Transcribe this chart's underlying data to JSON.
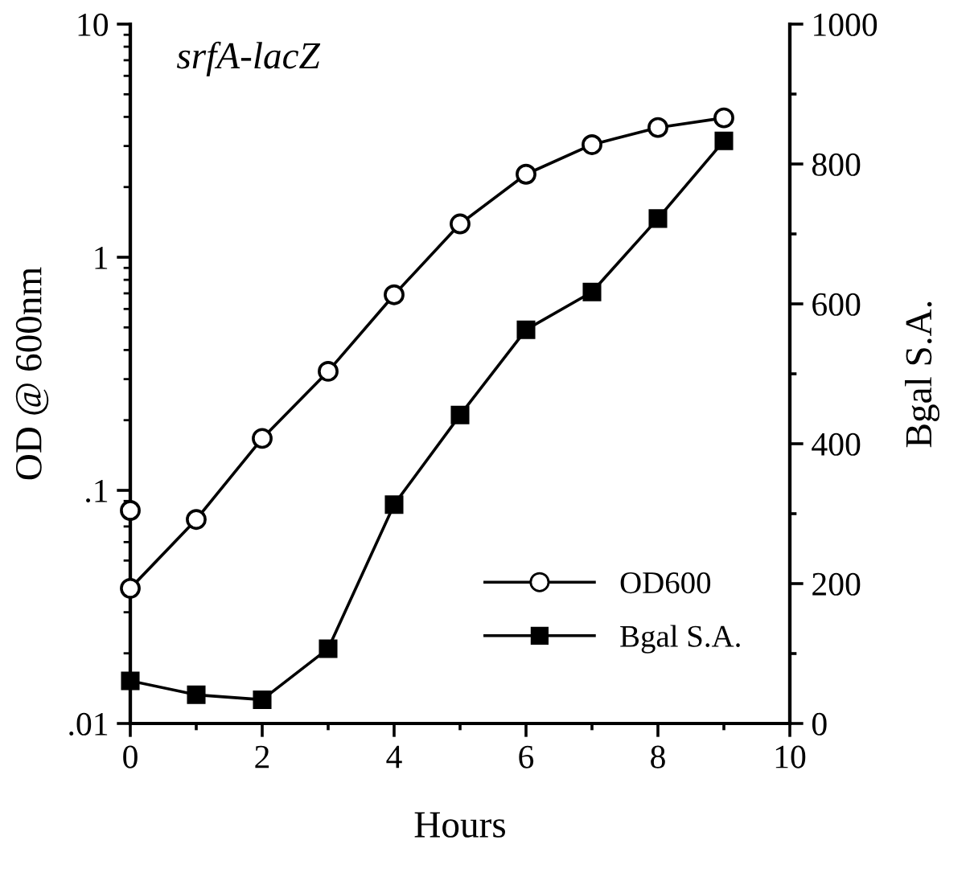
{
  "chart_data": {
    "type": "line",
    "title": "srfA-lacZ",
    "xlabel": "Hours",
    "ylabel": "OD @ 600nm",
    "y2label": "Bgal S.A.",
    "series": [
      {
        "name": "OD600",
        "color": "#000000",
        "marker": "circle",
        "x": [
          0,
          1,
          2,
          3,
          4,
          5,
          6,
          7,
          8,
          9
        ],
        "values": [
          0.038,
          0.075,
          0.167,
          0.324,
          0.69,
          1.39,
          2.27,
          3.04,
          3.6,
          3.96
        ]
      },
      {
        "type": "scatter",
        "color": "#000000",
        "marker": "circle",
        "x": [
          0
        ],
        "values": [
          0.082
        ]
      },
      {
        "name": "Bgal S.A.",
        "color": "#000000",
        "marker": "square",
        "axis": "y2",
        "x": [
          0,
          1,
          2,
          3,
          4,
          5,
          6,
          7,
          8,
          9
        ],
        "values": [
          61,
          41,
          34,
          107,
          313,
          441,
          563,
          617,
          722,
          833
        ]
      }
    ],
    "log": "y",
    "xlim": [
      0,
      10
    ],
    "xticks": [
      0,
      {
        "value": 1,
        "label": null
      },
      2,
      {
        "value": 3,
        "label": null
      },
      4,
      {
        "value": 5,
        "label": null
      },
      6,
      {
        "value": 7,
        "label": null
      },
      8,
      {
        "value": 9,
        "label": null
      },
      10
    ],
    "ylim": [
      0.01,
      10
    ],
    "yticks": [
      {
        "value": 0.01,
        "label": ".01"
      },
      {
        "value": 0.1,
        "label": ".1"
      },
      1,
      10
    ],
    "y2lim": [
      0,
      1000
    ],
    "y2ticks": [
      0,
      {
        "value": 100,
        "label": null
      },
      200,
      {
        "value": 300,
        "label": null
      },
      400,
      {
        "value": 500,
        "label": null
      },
      600,
      {
        "value": 700,
        "label": null
      },
      800,
      {
        "value": 900,
        "label": null
      },
      1000
    ],
    "grid": false,
    "legend": "bottom right",
    "line_style": "solid"
  }
}
